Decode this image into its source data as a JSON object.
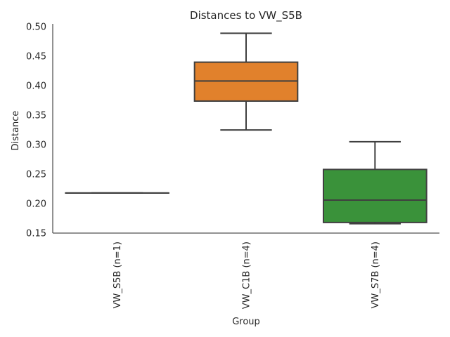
{
  "chart_data": {
    "type": "box",
    "title": "Distances to VW_S5B",
    "xlabel": "Group",
    "ylabel": "Distance",
    "ylim": [
      0.15,
      0.505
    ],
    "yticks": [
      "0.15",
      "0.20",
      "0.25",
      "0.30",
      "0.35",
      "0.40",
      "0.45",
      "0.50"
    ],
    "grid": false,
    "categories": [
      "VW_S5B (n=1)",
      "VW_C1B (n=4)",
      "VW_S7B (n=4)"
    ],
    "boxes": [
      {
        "category": "VW_S5B (n=1)",
        "min": 0.218,
        "q1": 0.218,
        "median": 0.218,
        "q3": 0.218,
        "max": 0.218,
        "color": "#3274a1"
      },
      {
        "category": "VW_C1B (n=4)",
        "min": 0.325,
        "q1": 0.374,
        "median": 0.408,
        "q3": 0.44,
        "max": 0.489,
        "color": "#e1812c"
      },
      {
        "category": "VW_S7B (n=4)",
        "min": 0.166,
        "q1": 0.168,
        "median": 0.206,
        "q3": 0.258,
        "max": 0.305,
        "color": "#3a923a"
      }
    ],
    "line_color": "#3f3f3f"
  }
}
